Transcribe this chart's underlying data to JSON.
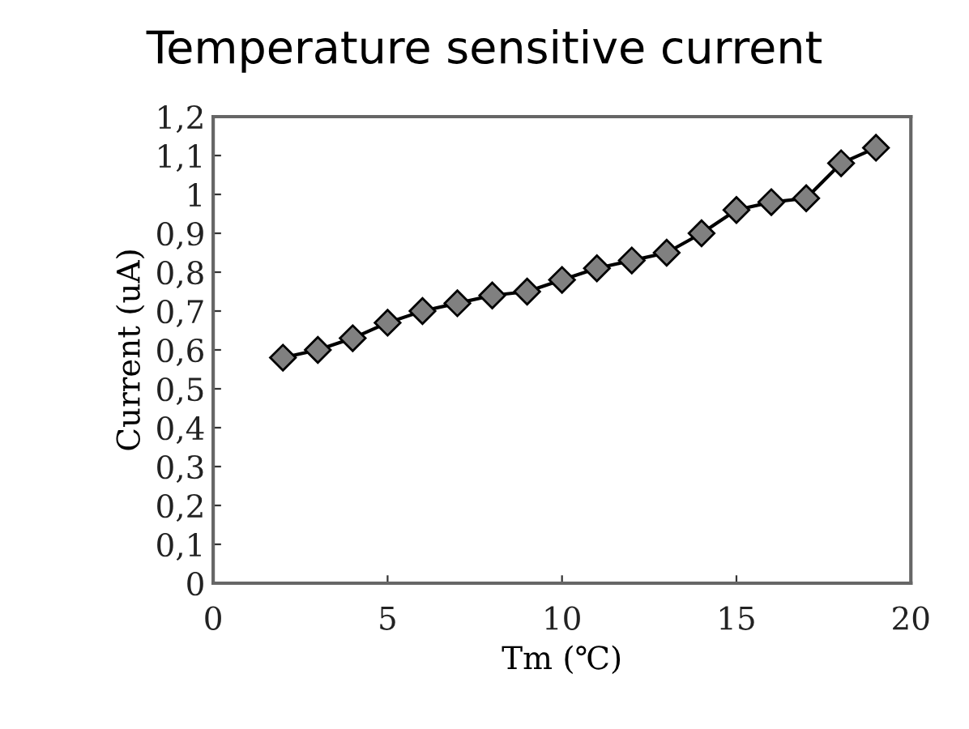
{
  "chart_data": {
    "type": "line",
    "title": "Temperature sensitive current",
    "xlabel": "Tm (℃)",
    "ylabel": "Current (uA)",
    "x": [
      2,
      3,
      4,
      5,
      6,
      7,
      8,
      9,
      10,
      11,
      12,
      13,
      14,
      15,
      16,
      17,
      18,
      19
    ],
    "series": [
      {
        "color": "#000000",
        "values": [
          0.58,
          0.6,
          0.63,
          0.67,
          0.7,
          0.72,
          0.74,
          0.75,
          0.78,
          0.81,
          0.83,
          0.85,
          0.9,
          0.96,
          0.98,
          0.99,
          1.08,
          1.12
        ]
      }
    ],
    "marker": "diamond",
    "line_style": "solid",
    "grid": false,
    "legend": false,
    "xlim": [
      0,
      20
    ],
    "xticks": [
      0,
      5,
      10,
      15,
      20
    ],
    "ylim": [
      0,
      1.2
    ],
    "yticks": [
      0,
      {
        "value": 0.1,
        "label": "0,1"
      },
      {
        "value": 0.2,
        "label": "0,2"
      },
      {
        "value": 0.3,
        "label": "0,3"
      },
      {
        "value": 0.4,
        "label": "0,4"
      },
      {
        "value": 0.5,
        "label": "0,5"
      },
      {
        "value": 0.6,
        "label": "0,6"
      },
      {
        "value": 0.7,
        "label": "0,7"
      },
      {
        "value": 0.8,
        "label": "0,8"
      },
      {
        "value": 0.9,
        "label": "0,9"
      },
      1,
      {
        "value": 1.1,
        "label": "1,1"
      },
      {
        "value": 1.2,
        "label": "1,2"
      }
    ]
  }
}
